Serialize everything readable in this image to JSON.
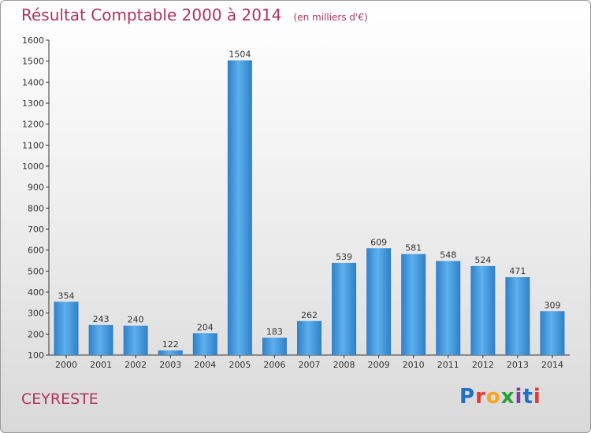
{
  "title": "Résultat Comptable 2000 à 2014",
  "subtitle": "(en milliers d'€)",
  "city": "CEYRESTE",
  "logo": "Proxiti",
  "colors": {
    "bar": "#4a9fe0",
    "title": "#b0325e",
    "axis": "#333333"
  },
  "chart_data": {
    "type": "bar",
    "title": "Résultat Comptable 2000 à 2014",
    "subtitle": "(en milliers d'€)",
    "xlabel": "",
    "ylabel": "",
    "categories": [
      "2000",
      "2001",
      "2002",
      "2003",
      "2004",
      "2005",
      "2006",
      "2007",
      "2008",
      "2009",
      "2010",
      "2011",
      "2012",
      "2013",
      "2014"
    ],
    "values": [
      354,
      243,
      240,
      122,
      204,
      1504,
      183,
      262,
      539,
      609,
      581,
      548,
      524,
      471,
      309
    ],
    "ylim": [
      100,
      1600
    ],
    "yticks": [
      100,
      200,
      300,
      400,
      500,
      600,
      700,
      800,
      900,
      1000,
      1100,
      1200,
      1300,
      1400,
      1500,
      1600
    ],
    "grid": false,
    "legend": "none"
  }
}
